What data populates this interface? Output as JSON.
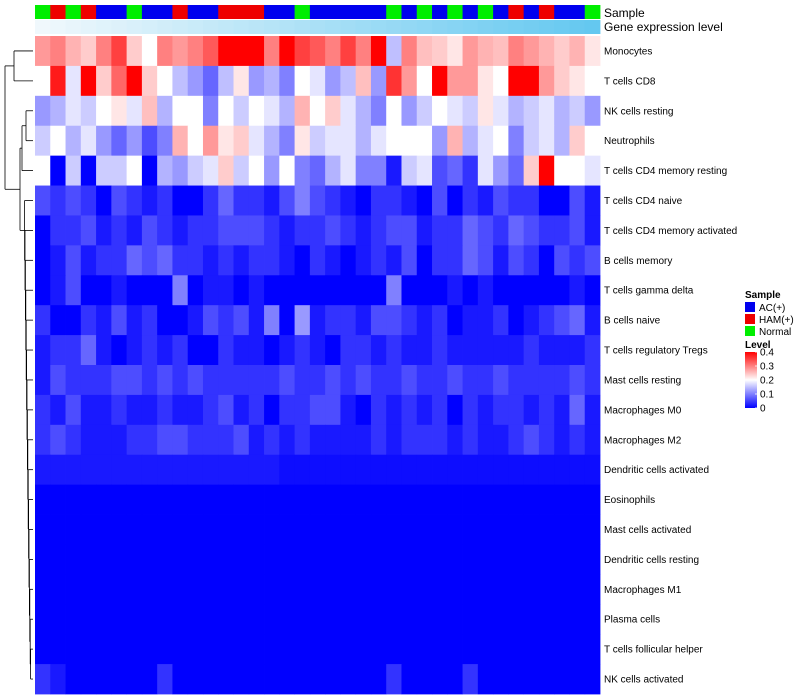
{
  "chart_data": {
    "type": "heatmap",
    "annotation_labels": {
      "sample": "Sample",
      "gene_expression": "Gene expression level"
    },
    "row_labels": [
      "Monocytes",
      "T cells CD8",
      "NK cells resting",
      "Neutrophils",
      "T cells CD4 memory resting",
      "T cells CD4 naive",
      "T cells CD4 memory activated",
      "B cells memory",
      "T cells gamma delta",
      "B cells naive",
      "T cells regulatory  Tregs",
      "Mast cells resting",
      "Macrophages M0",
      "Macrophages M2",
      "Dendritic cells activated",
      "Eosinophils",
      "Mast cells activated",
      "Dendritic cells resting",
      "Macrophages M1",
      "Plasma cells",
      "T cells follicular helper",
      "NK cells activated"
    ],
    "sample_groups": [
      "N",
      "H",
      "N",
      "H",
      "A",
      "A",
      "N",
      "A",
      "A",
      "H",
      "A",
      "A",
      "H",
      "H",
      "H",
      "A",
      "A",
      "N",
      "A",
      "A",
      "A",
      "A",
      "A",
      "N",
      "A",
      "N",
      "A",
      "N",
      "A",
      "N",
      "A",
      "H",
      "A",
      "H",
      "A",
      "A",
      "N"
    ],
    "gene_expression_levels": [
      0.02,
      0.03,
      0.04,
      0.05,
      0.06,
      0.07,
      0.08,
      0.09,
      0.1,
      0.11,
      0.12,
      0.13,
      0.14,
      0.15,
      0.16,
      0.17,
      0.18,
      0.19,
      0.2,
      0.21,
      0.22,
      0.23,
      0.24,
      0.25,
      0.26,
      0.27,
      0.28,
      0.29,
      0.3,
      0.31,
      0.32,
      0.33,
      0.34,
      0.35,
      0.36,
      0.37,
      0.38
    ],
    "values": [
      [
        0.28,
        0.3,
        0.26,
        0.24,
        0.3,
        0.35,
        0.24,
        0.2,
        0.3,
        0.28,
        0.3,
        0.33,
        0.4,
        0.4,
        0.4,
        0.3,
        0.4,
        0.35,
        0.33,
        0.3,
        0.35,
        0.3,
        0.4,
        0.15,
        0.3,
        0.25,
        0.24,
        0.22,
        0.28,
        0.26,
        0.25,
        0.3,
        0.28,
        0.26,
        0.24,
        0.26,
        0.22
      ],
      [
        0.2,
        0.38,
        0.18,
        0.4,
        0.24,
        0.32,
        0.4,
        0.24,
        0.2,
        0.15,
        0.12,
        0.08,
        0.15,
        0.22,
        0.12,
        0.14,
        0.1,
        0.2,
        0.18,
        0.12,
        0.15,
        0.25,
        0.12,
        0.36,
        0.28,
        0.2,
        0.4,
        0.28,
        0.28,
        0.22,
        0.2,
        0.4,
        0.4,
        0.28,
        0.24,
        0.22,
        0.2
      ],
      [
        0.12,
        0.14,
        0.18,
        0.16,
        0.2,
        0.22,
        0.18,
        0.25,
        0.14,
        0.2,
        0.2,
        0.1,
        0.2,
        0.16,
        0.2,
        0.18,
        0.14,
        0.26,
        0.2,
        0.24,
        0.18,
        0.14,
        0.1,
        0.2,
        0.12,
        0.16,
        0.2,
        0.18,
        0.16,
        0.22,
        0.18,
        0.14,
        0.16,
        0.18,
        0.14,
        0.16,
        0.12
      ],
      [
        0.16,
        0.2,
        0.14,
        0.18,
        0.12,
        0.08,
        0.12,
        0.06,
        0.1,
        0.26,
        0.2,
        0.28,
        0.22,
        0.24,
        0.18,
        0.14,
        0.1,
        0.22,
        0.16,
        0.18,
        0.18,
        0.14,
        0.18,
        0.2,
        0.2,
        0.2,
        0.12,
        0.26,
        0.14,
        0.18,
        0.2,
        0.1,
        0.16,
        0.18,
        0.14,
        0.24,
        0.2
      ],
      [
        0.2,
        0.0,
        0.16,
        0.0,
        0.16,
        0.16,
        0.2,
        0.0,
        0.14,
        0.12,
        0.16,
        0.18,
        0.24,
        0.16,
        0.2,
        0.12,
        0.2,
        0.1,
        0.08,
        0.14,
        0.18,
        0.1,
        0.1,
        0.02,
        0.16,
        0.18,
        0.06,
        0.08,
        0.04,
        0.18,
        0.12,
        0.08,
        0.24,
        0.4,
        0.2,
        0.2,
        0.18
      ],
      [
        0.06,
        0.04,
        0.06,
        0.04,
        0.0,
        0.06,
        0.04,
        0.02,
        0.04,
        0.0,
        0.0,
        0.04,
        0.08,
        0.04,
        0.04,
        0.02,
        0.06,
        0.1,
        0.06,
        0.04,
        0.02,
        0.0,
        0.04,
        0.04,
        0.02,
        0.0,
        0.06,
        0.0,
        0.04,
        0.02,
        0.06,
        0.04,
        0.04,
        0.0,
        0.0,
        0.06,
        0.02
      ],
      [
        0.0,
        0.04,
        0.04,
        0.06,
        0.02,
        0.04,
        0.02,
        0.06,
        0.04,
        0.02,
        0.04,
        0.04,
        0.06,
        0.06,
        0.06,
        0.04,
        0.02,
        0.04,
        0.04,
        0.06,
        0.04,
        0.02,
        0.04,
        0.06,
        0.06,
        0.02,
        0.04,
        0.04,
        0.08,
        0.06,
        0.04,
        0.08,
        0.06,
        0.04,
        0.04,
        0.06,
        0.02
      ],
      [
        0.0,
        0.02,
        0.06,
        0.02,
        0.04,
        0.04,
        0.08,
        0.06,
        0.08,
        0.04,
        0.04,
        0.02,
        0.04,
        0.02,
        0.04,
        0.04,
        0.02,
        0.0,
        0.04,
        0.02,
        0.0,
        0.02,
        0.04,
        0.02,
        0.06,
        0.0,
        0.04,
        0.04,
        0.08,
        0.06,
        0.02,
        0.06,
        0.04,
        0.0,
        0.06,
        0.04,
        0.06
      ],
      [
        0.0,
        0.02,
        0.06,
        0.0,
        0.0,
        0.02,
        0.0,
        0.0,
        0.0,
        0.1,
        0.0,
        0.02,
        0.02,
        0.0,
        0.02,
        0.0,
        0.0,
        0.0,
        0.0,
        0.0,
        0.0,
        0.0,
        0.0,
        0.1,
        0.0,
        0.0,
        0.0,
        0.02,
        0.0,
        0.02,
        0.0,
        0.0,
        0.0,
        0.0,
        0.0,
        0.02,
        0.0
      ],
      [
        0.04,
        0.0,
        0.0,
        0.04,
        0.02,
        0.06,
        0.02,
        0.04,
        0.0,
        0.0,
        0.02,
        0.06,
        0.04,
        0.06,
        0.02,
        0.1,
        0.0,
        0.12,
        0.02,
        0.04,
        0.04,
        0.02,
        0.06,
        0.06,
        0.04,
        0.02,
        0.04,
        0.0,
        0.02,
        0.02,
        0.04,
        0.0,
        0.02,
        0.04,
        0.06,
        0.08,
        0.02
      ],
      [
        0.02,
        0.04,
        0.04,
        0.08,
        0.02,
        0.0,
        0.02,
        0.04,
        0.02,
        0.04,
        0.0,
        0.0,
        0.04,
        0.02,
        0.02,
        0.0,
        0.02,
        0.04,
        0.02,
        0.0,
        0.04,
        0.04,
        0.02,
        0.04,
        0.02,
        0.02,
        0.04,
        0.02,
        0.02,
        0.02,
        0.02,
        0.02,
        0.04,
        0.02,
        0.02,
        0.02,
        0.04
      ],
      [
        0.02,
        0.06,
        0.04,
        0.04,
        0.04,
        0.06,
        0.06,
        0.04,
        0.06,
        0.04,
        0.06,
        0.04,
        0.04,
        0.04,
        0.04,
        0.04,
        0.06,
        0.04,
        0.04,
        0.06,
        0.04,
        0.06,
        0.04,
        0.04,
        0.06,
        0.04,
        0.04,
        0.06,
        0.04,
        0.04,
        0.06,
        0.04,
        0.04,
        0.04,
        0.04,
        0.06,
        0.04
      ],
      [
        0.04,
        0.02,
        0.06,
        0.02,
        0.02,
        0.04,
        0.02,
        0.02,
        0.04,
        0.02,
        0.02,
        0.04,
        0.06,
        0.02,
        0.04,
        0.0,
        0.04,
        0.04,
        0.06,
        0.06,
        0.02,
        0.0,
        0.04,
        0.02,
        0.04,
        0.02,
        0.04,
        0.0,
        0.04,
        0.02,
        0.04,
        0.04,
        0.02,
        0.04,
        0.02,
        0.08,
        0.02
      ],
      [
        0.04,
        0.06,
        0.04,
        0.02,
        0.02,
        0.02,
        0.04,
        0.04,
        0.06,
        0.06,
        0.04,
        0.04,
        0.04,
        0.06,
        0.02,
        0.04,
        0.02,
        0.04,
        0.02,
        0.02,
        0.02,
        0.02,
        0.04,
        0.02,
        0.04,
        0.04,
        0.04,
        0.02,
        0.04,
        0.02,
        0.02,
        0.04,
        0.06,
        0.04,
        0.02,
        0.04,
        0.02
      ],
      [
        0.02,
        0.02,
        0.02,
        0.02,
        0.02,
        0.02,
        0.02,
        0.02,
        0.02,
        0.02,
        0.02,
        0.02,
        0.02,
        0.02,
        0.02,
        0.02,
        0.01,
        0.01,
        0.01,
        0.01,
        0.01,
        0.01,
        0.01,
        0.01,
        0.01,
        0.01,
        0.01,
        0.01,
        0.01,
        0.01,
        0.01,
        0.01,
        0.01,
        0.01,
        0.01,
        0.01,
        0.01
      ],
      [
        0.0,
        0.0,
        0.0,
        0.0,
        0.0,
        0.0,
        0.0,
        0.0,
        0.0,
        0.0,
        0.0,
        0.0,
        0.0,
        0.0,
        0.0,
        0.0,
        0.0,
        0.0,
        0.0,
        0.0,
        0.0,
        0.0,
        0.0,
        0.0,
        0.0,
        0.0,
        0.0,
        0.0,
        0.0,
        0.0,
        0.0,
        0.0,
        0.0,
        0.0,
        0.0,
        0.0,
        0.0
      ],
      [
        0.0,
        0.0,
        0.0,
        0.0,
        0.0,
        0.0,
        0.0,
        0.0,
        0.0,
        0.0,
        0.0,
        0.0,
        0.0,
        0.0,
        0.0,
        0.0,
        0.0,
        0.0,
        0.0,
        0.0,
        0.0,
        0.0,
        0.0,
        0.0,
        0.0,
        0.0,
        0.0,
        0.0,
        0.0,
        0.0,
        0.0,
        0.0,
        0.0,
        0.0,
        0.0,
        0.0,
        0.0
      ],
      [
        0.0,
        0.0,
        0.0,
        0.0,
        0.0,
        0.0,
        0.0,
        0.0,
        0.0,
        0.0,
        0.0,
        0.0,
        0.0,
        0.0,
        0.0,
        0.0,
        0.0,
        0.0,
        0.0,
        0.0,
        0.0,
        0.0,
        0.0,
        0.0,
        0.0,
        0.0,
        0.0,
        0.0,
        0.0,
        0.0,
        0.0,
        0.0,
        0.0,
        0.0,
        0.0,
        0.0,
        0.0
      ],
      [
        0.0,
        0.0,
        0.0,
        0.0,
        0.0,
        0.0,
        0.0,
        0.0,
        0.0,
        0.0,
        0.0,
        0.0,
        0.0,
        0.0,
        0.0,
        0.0,
        0.0,
        0.0,
        0.0,
        0.0,
        0.0,
        0.0,
        0.0,
        0.0,
        0.0,
        0.0,
        0.0,
        0.0,
        0.0,
        0.0,
        0.0,
        0.0,
        0.0,
        0.0,
        0.0,
        0.0,
        0.0
      ],
      [
        0.0,
        0.0,
        0.0,
        0.0,
        0.0,
        0.0,
        0.0,
        0.0,
        0.0,
        0.0,
        0.0,
        0.0,
        0.0,
        0.0,
        0.0,
        0.0,
        0.0,
        0.0,
        0.0,
        0.0,
        0.0,
        0.0,
        0.0,
        0.0,
        0.0,
        0.0,
        0.0,
        0.0,
        0.0,
        0.0,
        0.0,
        0.0,
        0.0,
        0.0,
        0.0,
        0.0,
        0.0
      ],
      [
        0.0,
        0.0,
        0.0,
        0.0,
        0.0,
        0.0,
        0.0,
        0.0,
        0.0,
        0.0,
        0.0,
        0.0,
        0.0,
        0.0,
        0.0,
        0.0,
        0.0,
        0.0,
        0.0,
        0.0,
        0.0,
        0.0,
        0.0,
        0.0,
        0.0,
        0.0,
        0.0,
        0.0,
        0.0,
        0.0,
        0.0,
        0.0,
        0.0,
        0.0,
        0.0,
        0.0,
        0.0
      ],
      [
        0.04,
        0.02,
        0.0,
        0.0,
        0.0,
        0.0,
        0.0,
        0.0,
        0.04,
        0.0,
        0.0,
        0.0,
        0.0,
        0.0,
        0.0,
        0.0,
        0.0,
        0.0,
        0.0,
        0.0,
        0.0,
        0.0,
        0.0,
        0.04,
        0.0,
        0.0,
        0.0,
        0.0,
        0.04,
        0.0,
        0.0,
        0.0,
        0.0,
        0.0,
        0.0,
        0.0,
        0.0
      ]
    ],
    "legend": {
      "sample_title": "Sample",
      "sample_entries": [
        {
          "label": "AC(+)",
          "color": "#0000ee"
        },
        {
          "label": "HAM(+)",
          "color": "#ee0000"
        },
        {
          "label": "Normal",
          "color": "#00ee00"
        }
      ],
      "level_title": "Level",
      "level_ticks": [
        "0.4",
        "0.3",
        "0.2",
        "0.1",
        "0"
      ],
      "level_range": [
        0,
        0.4
      ]
    },
    "colors": {
      "low": "#0000ff",
      "mid": "#ffffff",
      "high": "#ff0000"
    }
  }
}
